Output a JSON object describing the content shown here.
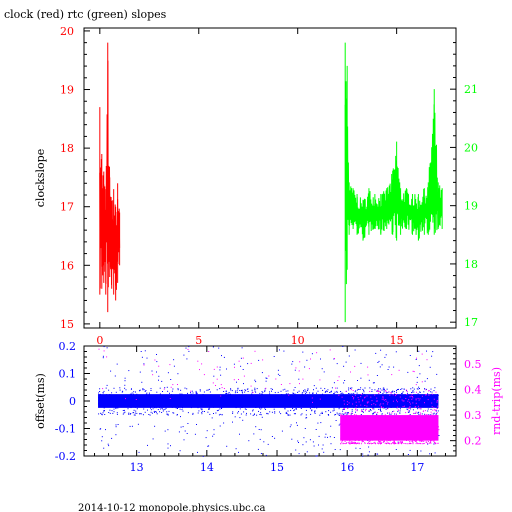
{
  "title": "clock (red) rtc (green) slopes",
  "footer": "2014-10-12  monopole.physics.ubc.ca",
  "colors": {
    "clock": "#ff0000",
    "rtc": "#00ff00",
    "offset": "#0000ff",
    "roundtrip": "#ff00ff",
    "frame": "#000000"
  },
  "chart_data": [
    {
      "type": "line",
      "title": "clock (red) rtc (green) slopes",
      "ylabel": "clockslope",
      "xlim": [
        -0.8,
        18.0
      ],
      "ylim": [
        14.93,
        20.05
      ],
      "y2lim": [
        16.9,
        22.05
      ],
      "xticks": [
        0,
        5,
        10,
        15
      ],
      "xtick_labels": [
        "0",
        "5",
        "10",
        "15"
      ],
      "yticks": [
        15,
        16,
        17,
        18,
        19,
        20
      ],
      "ytick_labels": [
        "15",
        "16",
        "17",
        "18",
        "19",
        "20"
      ],
      "y2ticks": [
        17,
        18,
        19,
        20,
        21
      ],
      "y2tick_labels": [
        "17",
        "18",
        "19",
        "20",
        "21"
      ],
      "series": [
        {
          "axis": "left",
          "color": "#ff0000",
          "x": [
            0.0,
            0.1,
            0.2,
            0.3,
            0.4,
            0.5,
            0.6,
            0.7,
            0.8,
            0.9,
            1.0
          ],
          "min": [
            15.5,
            15.6,
            15.7,
            15.5,
            15.2,
            15.8,
            15.6,
            15.5,
            15.4,
            15.7,
            16.0
          ],
          "max": [
            18.7,
            17.9,
            17.6,
            17.3,
            19.8,
            17.5,
            17.1,
            17.3,
            17.0,
            17.4,
            16.9
          ]
        },
        {
          "axis": "right",
          "color": "#00ff00",
          "x": [
            12.4,
            12.5,
            12.6,
            12.8,
            13.0,
            13.3,
            13.6,
            13.9,
            14.2,
            14.5,
            14.8,
            15.0,
            15.2,
            15.5,
            15.8,
            16.1,
            16.4,
            16.6,
            16.9,
            17.1,
            17.3
          ],
          "min": [
            17.0,
            17.9,
            18.5,
            18.6,
            18.5,
            18.4,
            18.5,
            18.6,
            18.5,
            18.6,
            18.5,
            18.4,
            18.5,
            18.6,
            18.5,
            18.4,
            18.5,
            18.5,
            18.5,
            18.6,
            18.6
          ],
          "max": [
            21.8,
            21.4,
            19.4,
            19.3,
            19.2,
            19.1,
            19.3,
            19.2,
            19.2,
            19.3,
            19.6,
            20.1,
            19.3,
            19.3,
            19.2,
            19.2,
            19.3,
            19.4,
            21.0,
            19.4,
            19.3
          ]
        }
      ]
    },
    {
      "type": "scatter",
      "ylabel": "offset(ms)",
      "y2label": "rnd-trip(ms)",
      "xlim": [
        12.25,
        17.55
      ],
      "ylim": [
        -0.2,
        0.2
      ],
      "y2lim": [
        0.14,
        0.57
      ],
      "xticks": [
        13,
        14,
        15,
        16,
        17
      ],
      "xtick_labels": [
        "13",
        "14",
        "15",
        "16",
        "17"
      ],
      "yticks": [
        -0.2,
        -0.1,
        0,
        0.1,
        0.2
      ],
      "ytick_labels": [
        "-0.2",
        "-0.1",
        "0",
        "0.1",
        "0.2"
      ],
      "y2ticks": [
        0.2,
        0.3,
        0.4,
        0.5
      ],
      "y2tick_labels": [
        "0.2",
        "0.3",
        "0.4",
        "0.5"
      ],
      "series": [
        {
          "axis": "left",
          "color": "#0000ff",
          "x_range": [
            12.45,
            17.3
          ],
          "band": [
            -0.025,
            0.025
          ],
          "spread": [
            -0.2,
            0.2
          ]
        },
        {
          "axis": "right",
          "color": "#ff00ff",
          "x_range": [
            15.9,
            17.3
          ],
          "band": [
            0.2,
            0.3
          ],
          "spread": [
            0.19,
            0.4
          ]
        }
      ]
    }
  ]
}
